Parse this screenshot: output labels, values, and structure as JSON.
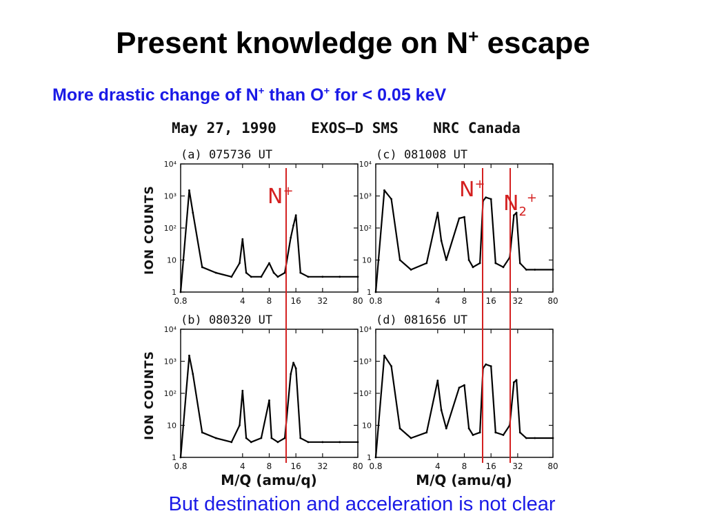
{
  "slide": {
    "title_main": "Present knowledge on N",
    "title_sup": "+",
    "title_end": " escape",
    "subtitle_a": "More drastic change of N",
    "subtitle_sup1": "+",
    "subtitle_b": " than O",
    "subtitle_sup2": "+",
    "subtitle_c": " for < 0.05 keV",
    "footer": "But destination and acceleration is not clear"
  },
  "figure": {
    "header": "May 27, 1990    EXOS–D SMS    NRC Canada",
    "ylabel": "ION COUNTS",
    "xlabel": "M/Q (amu/q)",
    "xticks": [
      "0.8",
      "4",
      "8",
      "16",
      "32",
      "80"
    ],
    "yticks": [
      "10⁴",
      "10³",
      "10²",
      "10",
      "1"
    ],
    "annotations": {
      "nplus_left": "N",
      "nplus_left_sup": "+",
      "nplus_right": "N",
      "nplus_right_sup": "+",
      "n2plus": "N",
      "n2plus_sub": "2",
      "n2plus_sup": "+"
    },
    "line_color": "#d42020"
  },
  "chart_data": [
    {
      "type": "line",
      "panel": "(a) 075736 UT",
      "x": [
        0.8,
        1,
        1.1,
        1.4,
        2,
        3,
        3.7,
        4,
        4.4,
        5,
        6.5,
        8,
        9,
        10,
        12,
        14,
        15,
        16,
        18,
        22,
        32,
        50,
        80
      ],
      "values": [
        1,
        1500,
        300,
        6,
        4,
        3,
        8,
        45,
        4,
        3,
        3,
        8,
        4,
        3,
        4,
        50,
        120,
        250,
        4,
        3,
        3,
        3,
        3
      ],
      "xlim": [
        0.8,
        80
      ],
      "ylim": [
        1,
        10000
      ],
      "xscale": "log",
      "yscale": "log"
    },
    {
      "type": "line",
      "panel": "(c) 081008 UT",
      "x": [
        0.8,
        1,
        1.2,
        1.5,
        2,
        3,
        4,
        4.4,
        5,
        7,
        8,
        9,
        10,
        12,
        13,
        14,
        16,
        18,
        22,
        26,
        29,
        31,
        34,
        40,
        50,
        80
      ],
      "values": [
        1,
        1500,
        800,
        10,
        5,
        8,
        300,
        40,
        10,
        200,
        220,
        10,
        6,
        8,
        700,
        900,
        800,
        8,
        6,
        12,
        250,
        300,
        8,
        5,
        5,
        5
      ],
      "xlim": [
        0.8,
        80
      ],
      "ylim": [
        1,
        10000
      ],
      "xscale": "log",
      "yscale": "log"
    },
    {
      "type": "line",
      "panel": "(b) 080320 UT",
      "x": [
        0.8,
        1,
        1.1,
        1.4,
        2,
        3,
        3.7,
        4,
        4.4,
        5,
        6.5,
        8,
        8.5,
        10,
        12,
        14,
        15,
        16,
        18,
        22,
        32,
        50,
        80
      ],
      "values": [
        1,
        1500,
        400,
        6,
        4,
        3,
        10,
        120,
        4,
        3,
        4,
        60,
        4,
        3,
        4,
        400,
        900,
        600,
        4,
        3,
        3,
        3,
        3
      ],
      "xlim": [
        0.8,
        80
      ],
      "ylim": [
        1,
        10000
      ],
      "xscale": "log",
      "yscale": "log"
    },
    {
      "type": "line",
      "panel": "(d) 081656 UT",
      "x": [
        0.8,
        1,
        1.2,
        1.5,
        2,
        3,
        4,
        4.4,
        5,
        7,
        8,
        9,
        10,
        12,
        13,
        14,
        16,
        18,
        22,
        26,
        29,
        31,
        34,
        40,
        50,
        80
      ],
      "values": [
        1,
        1500,
        700,
        8,
        4,
        6,
        250,
        30,
        8,
        150,
        180,
        8,
        5,
        6,
        600,
        800,
        700,
        6,
        5,
        10,
        220,
        260,
        6,
        4,
        4,
        4
      ],
      "xlim": [
        0.8,
        80
      ],
      "ylim": [
        1,
        10000
      ],
      "xscale": "log",
      "yscale": "log"
    }
  ]
}
